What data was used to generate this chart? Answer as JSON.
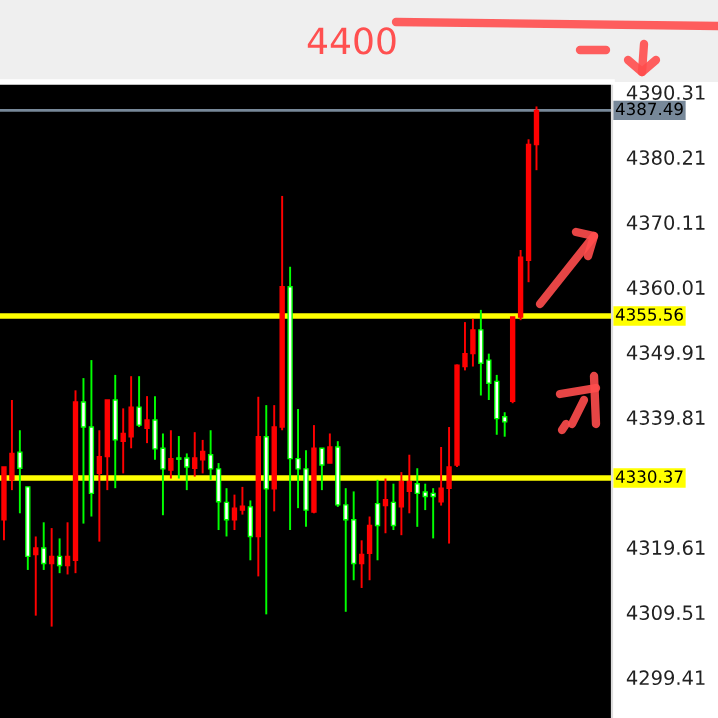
{
  "chart_data": {
    "type": "candlestick",
    "annotations": [
      "4400"
    ],
    "categories": [
      null,
      null,
      null,
      null,
      null,
      null,
      null,
      null,
      null,
      null,
      null,
      null,
      null,
      null,
      null,
      null,
      null,
      null,
      null,
      null,
      null,
      null,
      null,
      null,
      null,
      null,
      null,
      null,
      null,
      null,
      null,
      null,
      null,
      null,
      null,
      null,
      null,
      null,
      null,
      null,
      null,
      null,
      null,
      null,
      null,
      null,
      null,
      null,
      null,
      null,
      null,
      null,
      null,
      null,
      null,
      null,
      null,
      null,
      null,
      null,
      null,
      null,
      null,
      null,
      null,
      null,
      null,
      null,
      null,
      null,
      null,
      null,
      null,
      null,
      null,
      null,
      null
    ],
    "ohlc": [
      [
        4323.9,
        4332.1,
        4320.7,
        4332.1
      ],
      [
        4330.1,
        4342.5,
        4328.5,
        4334.2
      ],
      [
        4334.4,
        4337.8,
        4324.9,
        4331.9
      ],
      [
        4329.0,
        4329.0,
        4316.1,
        4318.2
      ],
      [
        4318.5,
        4321.3,
        4309.0,
        4319.5
      ],
      [
        4319.5,
        4323.5,
        4316.1,
        4317.1
      ],
      [
        4317.1,
        4322.6,
        4307.3,
        4318.2
      ],
      [
        4318.2,
        4321.0,
        4315.6,
        4316.8
      ],
      [
        4316.8,
        4323.5,
        4315.4,
        4318.2
      ],
      [
        4317.6,
        4344.0,
        4315.6,
        4342.2
      ],
      [
        4342.2,
        4345.9,
        4323.3,
        4338.3
      ],
      [
        4338.3,
        4348.7,
        4324.4,
        4328.0
      ],
      [
        4331.1,
        4337.8,
        4320.5,
        4333.7
      ],
      [
        4333.7,
        4342.5,
        4328.5,
        4342.5
      ],
      [
        4342.5,
        4346.4,
        4328.8,
        4336.3
      ],
      [
        4336.1,
        4341.2,
        4331.1,
        4337.3
      ],
      [
        4336.8,
        4346.2,
        4335.0,
        4341.4
      ],
      [
        4341.4,
        4346.2,
        4338.3,
        4338.6
      ],
      [
        4338.1,
        4343.1,
        4335.8,
        4339.4
      ],
      [
        4339.4,
        4343.1,
        4333.2,
        4334.9
      ],
      [
        4335.0,
        4337.3,
        4324.6,
        4331.8
      ],
      [
        4331.6,
        4337.8,
        4330.3,
        4333.4
      ],
      [
        4333.5,
        4336.9,
        4330.3,
        4333.3
      ],
      [
        4333.5,
        4334.2,
        4328.5,
        4332.1
      ],
      [
        4331.9,
        4337.5,
        4330.6,
        4333.5
      ],
      [
        4333.2,
        4336.3,
        4331.1,
        4334.5
      ],
      [
        4334.0,
        4337.8,
        4330.1,
        4331.8
      ],
      [
        4331.8,
        4332.7,
        4322.3,
        4326.7
      ],
      [
        4326.6,
        4328.8,
        4321.3,
        4323.9
      ],
      [
        4323.9,
        4327.8,
        4322.3,
        4325.7
      ],
      [
        4325.4,
        4329.0,
        4324.7,
        4326.0
      ],
      [
        4325.9,
        4326.9,
        4317.6,
        4321.3
      ],
      [
        4321.3,
        4343.0,
        4315.1,
        4336.8
      ],
      [
        4336.8,
        4341.7,
        4309.2,
        4328.7
      ],
      [
        4328.7,
        4341.7,
        4325.2,
        4338.3
      ],
      [
        4338.3,
        4374.2,
        4337.8,
        4360.1
      ],
      [
        4360.1,
        4363.2,
        4322.3,
        4333.4
      ],
      [
        4333.4,
        4341.1,
        4325.7,
        4331.8
      ],
      [
        4331.8,
        4334.7,
        4322.8,
        4325.4
      ],
      [
        4325.1,
        4338.6,
        4324.9,
        4335.0
      ],
      [
        4335.0,
        4335.0,
        4328.5,
        4332.4
      ],
      [
        4332.7,
        4337.3,
        4332.7,
        4335.2
      ],
      [
        4335.2,
        4336.1,
        4325.9,
        4326.2
      ],
      [
        4326.2,
        4328.8,
        4309.6,
        4323.9
      ],
      [
        4323.9,
        4328.3,
        4314.5,
        4317.1
      ],
      [
        4317.1,
        4320.7,
        4313.3,
        4318.5
      ],
      [
        4318.7,
        4324.4,
        4314.5,
        4323.0
      ],
      [
        4326.4,
        4330.1,
        4317.6,
        4323.0
      ],
      [
        4326.1,
        4330.3,
        4321.8,
        4327.0
      ],
      [
        4326.6,
        4329.5,
        4322.3,
        4323.0
      ],
      [
        4325.9,
        4331.3,
        4321.5,
        4329.8
      ],
      [
        4328.3,
        4334.0,
        4324.9,
        4329.8
      ],
      [
        4329.5,
        4331.9,
        4322.8,
        4328.0
      ],
      [
        4328.2,
        4329.5,
        4325.4,
        4327.5
      ],
      [
        4328.0,
        4328.8,
        4321.0,
        4327.5
      ],
      [
        4326.7,
        4335.2,
        4326.1,
        4328.8
      ],
      [
        4328.8,
        4338.3,
        4320.2,
        4332.1
      ],
      [
        4332.4,
        4348.0,
        4332.1,
        4347.9
      ],
      [
        4347.7,
        4354.6,
        4347.1,
        4349.7
      ],
      [
        4349.7,
        4355.1,
        4347.7,
        4353.4
      ],
      [
        4353.4,
        4356.5,
        4343.2,
        4348.2
      ],
      [
        4348.7,
        4349.7,
        4342.5,
        4345.1
      ],
      [
        4345.4,
        4346.4,
        4337.1,
        4339.6
      ],
      [
        4339.9,
        4340.6,
        4336.8,
        4339.1
      ],
      [
        4342.3,
        4355.4,
        4342.0,
        4355.4
      ],
      [
        4355.4,
        4365.8,
        4354.9,
        4364.7
      ],
      [
        4364.2,
        4383.0,
        4360.8,
        4382.2
      ],
      [
        4382.2,
        4388.1,
        4378.2,
        4387.5
      ],
      null,
      null,
      null,
      null,
      null,
      null,
      null,
      null,
      null
    ],
    "colors": [
      "#ff0000",
      "#ff0000",
      "#00ff00",
      "#00ff00",
      "#ff0000",
      "#00ff00",
      "#ff0000",
      "#00ff00",
      "#ff0000",
      "#ff0000",
      "#00ff00",
      "#00ff00",
      "#ff0000",
      "#ff0000",
      "#00ff00",
      "#ff0000",
      "#ff0000",
      "#00ff00",
      "#ff0000",
      "#00ff00",
      "#00ff00",
      "#ff0000",
      "#00ff00",
      "#00ff00",
      "#ff0000",
      "#ff0000",
      "#00ff00",
      "#00ff00",
      "#00ff00",
      "#ff0000",
      "#ff0000",
      "#00ff00",
      "#ff0000",
      "#00ff00",
      "#ff0000",
      "#ff0000",
      "#00ff00",
      "#00ff00",
      "#00ff00",
      "#ff0000",
      "#00ff00",
      "#ff0000",
      "#00ff00",
      "#00ff00",
      "#00ff00",
      "#ff0000",
      "#ff0000",
      "#00ff00",
      "#ff0000",
      "#00ff00",
      "#ff0000",
      "#ff0000",
      "#00ff00",
      "#00ff00",
      "#00ff00",
      "#ff0000",
      "#ff0000",
      "#ff0000",
      "#ff0000",
      "#ff0000",
      "#00ff00",
      "#00ff00",
      "#00ff00",
      "#00ff00",
      "#ff0000",
      "#ff0000",
      "#ff0000",
      "#ff0000",
      null,
      null,
      null,
      null,
      null,
      null,
      null,
      null,
      null
    ],
    "ylim": [
      4293.1,
      4391.9
    ],
    "yticks": [
      4299.41,
      4309.51,
      4319.61,
      4339.81,
      4349.91,
      4360.01,
      4370.11,
      4380.21,
      4390.31
    ],
    "ref_lines": [
      {
        "axis": "y",
        "value": 4355.56,
        "label": "4355.56",
        "color": "#ffff00"
      },
      {
        "axis": "y",
        "value": 4330.37,
        "label": "4330.37",
        "color": "#ffff00"
      },
      {
        "axis": "y",
        "value": 4387.49,
        "label": "4387.49",
        "color": "#778899"
      }
    ],
    "grid": false,
    "legend": false
  }
}
